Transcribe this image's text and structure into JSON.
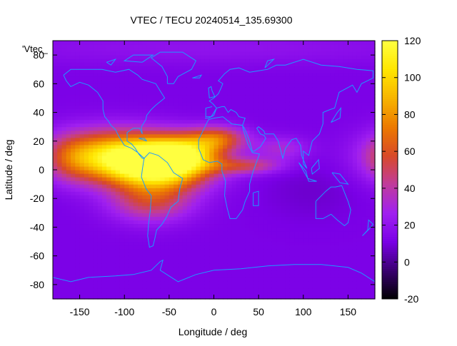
{
  "chart_data": {
    "type": "heatmap",
    "title": "VTEC / TECU 20240514_135.69300",
    "xlabel": "Longitude / deg",
    "ylabel": "Latitude / deg",
    "xlim": [
      -180,
      180
    ],
    "ylim": [
      -90,
      90
    ],
    "x_ticks": [
      -150,
      -100,
      -50,
      0,
      50,
      100,
      150
    ],
    "y_ticks": [
      -80,
      -60,
      -40,
      -20,
      0,
      20,
      40,
      60,
      80
    ],
    "colorbar": {
      "range": [
        -20,
        120
      ],
      "ticks": [
        -20,
        0,
        20,
        40,
        60,
        80,
        100,
        120
      ],
      "palette": [
        "#000000",
        "#3a0070",
        "#7a00e6",
        "#a020f0",
        "#c03c9c",
        "#d84a28",
        "#ec7a00",
        "#f7b400",
        "#ffe600",
        "#ffff40"
      ]
    },
    "legend_text": "'Vtec_",
    "coastline_color": "#1e9aff",
    "background_tec": 12,
    "features": [
      {
        "lon": -110,
        "lat": 10,
        "sx": 45,
        "sy": 12,
        "amp": 88
      },
      {
        "lon": -60,
        "lat": 2,
        "sx": 38,
        "sy": 11,
        "amp": 92
      },
      {
        "lon": -35,
        "lat": 12,
        "sx": 30,
        "sy": 9,
        "amp": 65
      },
      {
        "lon": 5,
        "lat": 22,
        "sx": 22,
        "sy": 6,
        "amp": 45
      },
      {
        "lon": 35,
        "lat": 3,
        "sx": 28,
        "sy": 4,
        "amp": 35
      },
      {
        "lon": 75,
        "lat": 15,
        "sx": 22,
        "sy": 6,
        "amp": 20
      },
      {
        "lon": -70,
        "lat": -22,
        "sx": 32,
        "sy": 10,
        "amp": 38
      },
      {
        "lon": -160,
        "lat": 8,
        "sx": 20,
        "sy": 12,
        "amp": 18
      },
      {
        "lon": 0,
        "lat": 85,
        "sx": 200,
        "sy": 8,
        "amp": 8
      },
      {
        "lon": 110,
        "lat": -15,
        "sx": 40,
        "sy": 15,
        "amp": -4
      }
    ]
  }
}
